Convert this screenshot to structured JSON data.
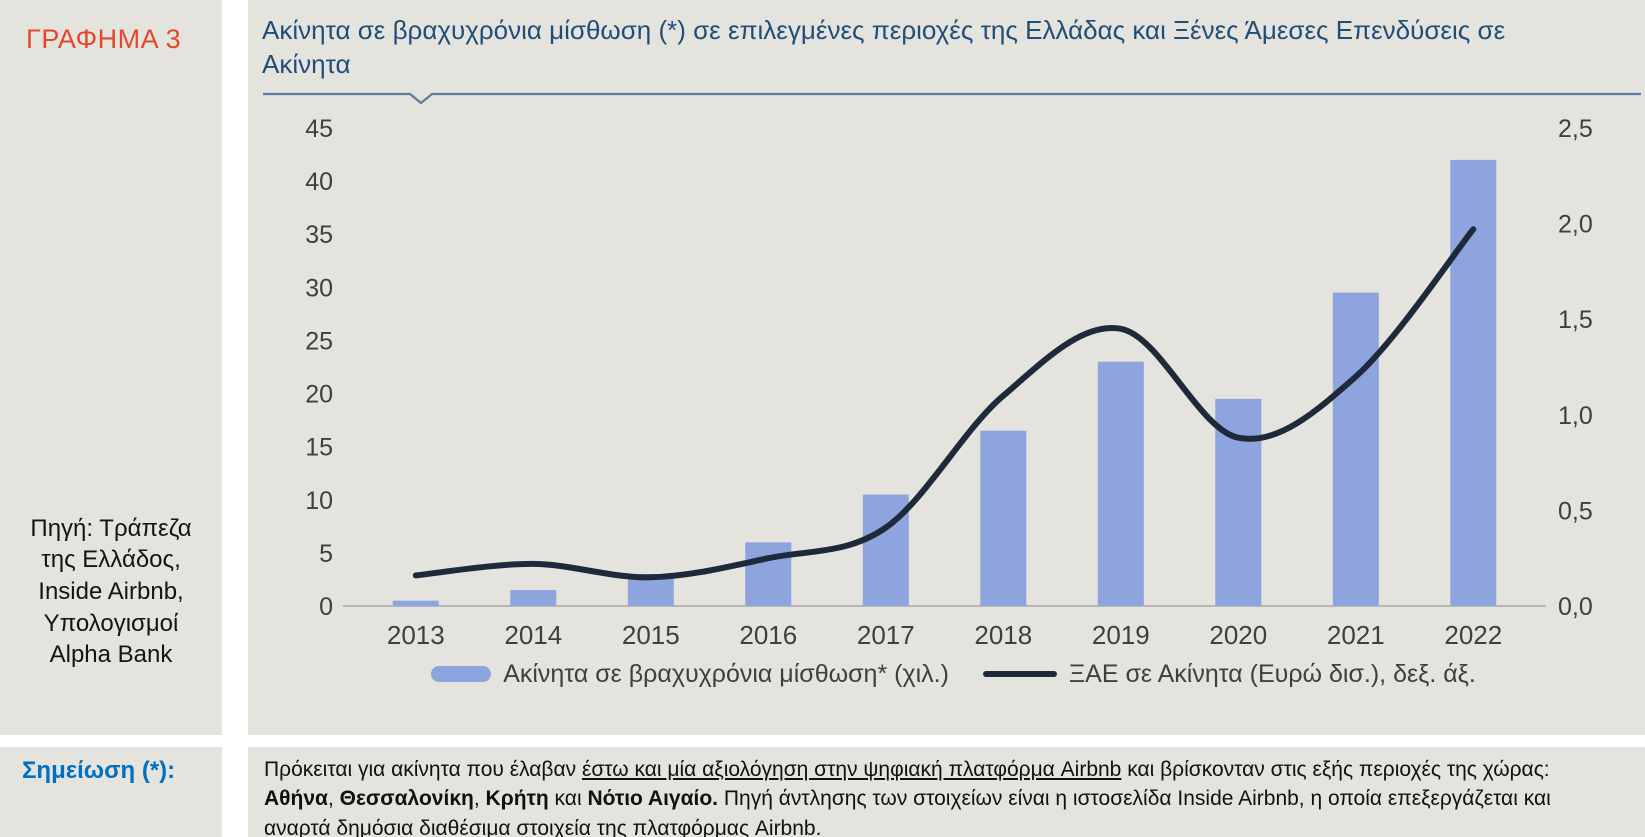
{
  "sidebar": {
    "figure_label": "ΓΡΑΦΗΜΑ 3",
    "source": "Πηγή: Τράπεζα της Ελλάδος, Inside Airbnb, Υπολογισμοί Alpha Bank"
  },
  "header": {
    "title": "Ακίνητα σε βραχυχρόνια μίσθωση (*) σε επιλεγμένες περιοχές της Ελλάδας και Ξένες Άμεσες Επενδύσεις σε Ακίνητα"
  },
  "note": {
    "label": "Σημείωση (*):",
    "segments": [
      {
        "text": "Πρόκειται για ακίνητα που έλαβαν ",
        "bold": false,
        "underline": false
      },
      {
        "text": "έστω και μία αξιολόγηση στην ψηφιακή πλατφόρμα Airbnb",
        "bold": false,
        "underline": true
      },
      {
        "text": " και βρίσκονταν στις εξής περιοχές της χώρας: ",
        "bold": false,
        "underline": false
      },
      {
        "text": "Αθήνα",
        "bold": true,
        "underline": false
      },
      {
        "text": ", ",
        "bold": false,
        "underline": false
      },
      {
        "text": "Θεσσαλονίκη",
        "bold": true,
        "underline": false
      },
      {
        "text": ", ",
        "bold": false,
        "underline": false
      },
      {
        "text": "Κρήτη",
        "bold": true,
        "underline": false
      },
      {
        "text": " και ",
        "bold": false,
        "underline": false
      },
      {
        "text": "Νότιο Αιγαίο.",
        "bold": true,
        "underline": false
      },
      {
        "text": " Πηγή άντλησης των στοιχείων είναι η ιστοσελίδα Inside Airbnb, η οποία επεξεργάζεται και αναρτά δημόσια διαθέσιμα στοιχεία της πλατφόρμας Airbnb.",
        "bold": false,
        "underline": false
      }
    ]
  },
  "colors": {
    "panel_bg": "#e5e3de",
    "figure_red": "#e2492b",
    "title_blue": "#1f4e79",
    "note_blue": "#0070c0",
    "bar": "#8da4de",
    "line": "#1e2a3a",
    "baseline": "#b9b7b2",
    "rule": "#5b7b9d"
  },
  "chart_data": {
    "type": "bar",
    "subtype": "combo-bar-line",
    "title": "Ακίνητα σε βραχυχρόνια μίσθωση (*) σε επιλεγμένες περιοχές της Ελλάδας και Ξένες Άμεσες Επενδύσεις σε Ακίνητα",
    "categories": [
      "2013",
      "2014",
      "2015",
      "2016",
      "2017",
      "2018",
      "2019",
      "2020",
      "2021",
      "2022"
    ],
    "series": [
      {
        "name": "Ακίνητα σε βραχυχρόνια μίσθωση* (χιλ.)",
        "type": "bar",
        "axis": "left",
        "values": [
          0.5,
          1.5,
          3,
          6,
          10.5,
          16.5,
          23,
          19.5,
          29.5,
          42
        ]
      },
      {
        "name": "ΞΑΕ σε Ακίνητα (Ευρώ δισ.), δεξ. άξ.",
        "type": "line",
        "axis": "right",
        "values": [
          0.16,
          0.22,
          0.15,
          0.25,
          0.41,
          1.1,
          1.45,
          0.88,
          1.2,
          1.97
        ]
      }
    ],
    "left_axis": {
      "min": 0,
      "max": 45,
      "step": 5,
      "ticks": [
        "0",
        "5",
        "10",
        "15",
        "20",
        "25",
        "30",
        "35",
        "40",
        "45"
      ]
    },
    "right_axis": {
      "min": 0,
      "max": 2.5,
      "step": 0.5,
      "ticks": [
        "0,0",
        "0,5",
        "1,0",
        "1,5",
        "2,0",
        "2,5"
      ]
    },
    "grid": false,
    "legend_position": "bottom"
  }
}
